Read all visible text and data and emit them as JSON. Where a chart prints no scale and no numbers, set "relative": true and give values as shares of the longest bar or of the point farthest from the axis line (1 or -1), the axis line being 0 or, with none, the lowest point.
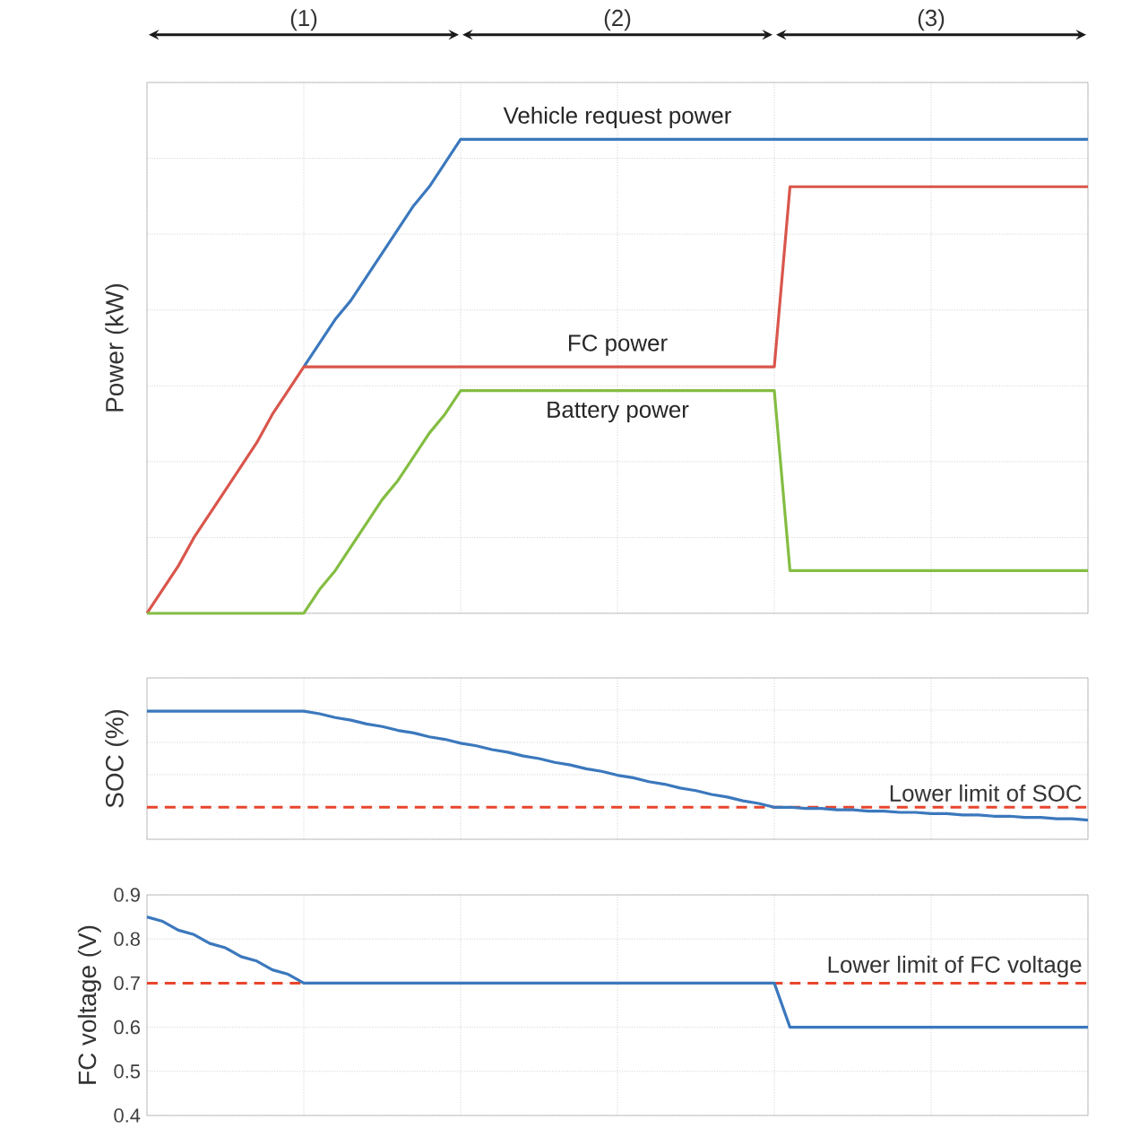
{
  "chart_data": [
    {
      "type": "line",
      "ylabel": "Power (kW)",
      "relative": true,
      "tick_labels": false,
      "grid": true,
      "line_style": "solid",
      "marker": "none",
      "annotations": [
        "(1)",
        "(2)",
        "(3)"
      ],
      "categories": [
        null,
        null,
        null,
        null,
        null,
        null,
        null,
        null,
        null,
        null,
        null,
        null,
        null,
        null,
        null,
        null,
        null,
        null,
        null,
        null,
        null,
        null,
        null,
        null,
        null,
        null,
        null,
        null,
        null,
        null,
        null,
        null,
        null,
        null,
        null,
        null,
        null,
        null,
        null,
        null,
        null,
        null,
        null,
        null,
        null,
        null,
        null,
        null,
        null,
        null,
        null,
        null,
        null,
        null,
        null,
        null,
        null,
        null,
        null,
        null,
        null
      ],
      "series": [
        {
          "name": "Vehicle request power",
          "color": "#3b78bd",
          "values": [
            null,
            null,
            null,
            null,
            null,
            null,
            null,
            null,
            null,
            null,
            0.52,
            0.57,
            0.62,
            0.66,
            0.71,
            0.76,
            0.81,
            0.86,
            0.9,
            0.95,
            1,
            1,
            1,
            1,
            1,
            1,
            1,
            1,
            1,
            1,
            1,
            1,
            1,
            1,
            1,
            1,
            1,
            1,
            1,
            1,
            1,
            1,
            1,
            1,
            1,
            1,
            1,
            1,
            1,
            1,
            1,
            1,
            1,
            1,
            1,
            1,
            1,
            1,
            1,
            1,
            1
          ]
        },
        {
          "name": "FC power",
          "color": "#d9564c",
          "values": [
            0,
            0.05,
            0.1,
            0.16,
            0.21,
            0.26,
            0.31,
            0.36,
            0.42,
            0.47,
            0.52,
            0.52,
            0.52,
            0.52,
            0.52,
            0.52,
            0.52,
            0.52,
            0.52,
            0.52,
            0.52,
            0.52,
            0.52,
            0.52,
            0.52,
            0.52,
            0.52,
            0.52,
            0.52,
            0.52,
            0.52,
            0.52,
            0.52,
            0.52,
            0.52,
            0.52,
            0.52,
            0.52,
            0.52,
            0.52,
            0.52,
            0.9,
            0.9,
            0.9,
            0.9,
            0.9,
            0.9,
            0.9,
            0.9,
            0.9,
            0.9,
            0.9,
            0.9,
            0.9,
            0.9,
            0.9,
            0.9,
            0.9,
            0.9,
            0.9,
            0.9
          ]
        },
        {
          "name": "Battery power",
          "color": "#84bd42",
          "values": [
            0,
            0,
            0,
            0,
            0,
            0,
            0,
            0,
            0,
            0,
            0,
            0.05,
            0.09,
            0.14,
            0.19,
            0.24,
            0.28,
            0.33,
            0.38,
            0.42,
            0.47,
            0.47,
            0.47,
            0.47,
            0.47,
            0.47,
            0.47,
            0.47,
            0.47,
            0.47,
            0.47,
            0.47,
            0.47,
            0.47,
            0.47,
            0.47,
            0.47,
            0.47,
            0.47,
            0.47,
            0.47,
            0.09,
            0.09,
            0.09,
            0.09,
            0.09,
            0.09,
            0.09,
            0.09,
            0.09,
            0.09,
            0.09,
            0.09,
            0.09,
            0.09,
            0.09,
            0.09,
            0.09,
            0.09,
            0.09,
            0.09
          ]
        }
      ]
    },
    {
      "type": "line",
      "ylabel": "SOC (%)",
      "relative": true,
      "tick_labels": false,
      "grid": true,
      "line_style": "solid",
      "marker": "none",
      "categories": [
        null,
        null,
        null,
        null,
        null,
        null,
        null,
        null,
        null,
        null,
        null,
        null,
        null,
        null,
        null,
        null,
        null,
        null,
        null,
        null,
        null,
        null,
        null,
        null,
        null,
        null,
        null,
        null,
        null,
        null,
        null,
        null,
        null,
        null,
        null,
        null,
        null,
        null,
        null,
        null,
        null,
        null,
        null,
        null,
        null,
        null,
        null,
        null,
        null,
        null,
        null,
        null,
        null,
        null,
        null,
        null,
        null,
        null,
        null,
        null,
        null
      ],
      "ref_lines": [
        {
          "axis": "y",
          "value": 0.25,
          "label": "Lower limit of SOC",
          "color": "#e8452c",
          "line_style": "dashed"
        }
      ],
      "series": [
        {
          "color": "#3b78bd",
          "values": [
            1,
            1,
            1,
            1,
            1,
            1,
            1,
            1,
            1,
            1,
            1,
            0.98,
            0.95,
            0.93,
            0.9,
            0.88,
            0.85,
            0.83,
            0.8,
            0.78,
            0.75,
            0.73,
            0.7,
            0.68,
            0.65,
            0.63,
            0.6,
            0.58,
            0.55,
            0.53,
            0.5,
            0.48,
            0.45,
            0.43,
            0.4,
            0.38,
            0.35,
            0.33,
            0.3,
            0.28,
            0.25,
            0.25,
            0.24,
            0.24,
            0.23,
            0.23,
            0.22,
            0.22,
            0.21,
            0.21,
            0.2,
            0.2,
            0.19,
            0.19,
            0.18,
            0.18,
            0.17,
            0.17,
            0.16,
            0.16,
            0.15
          ]
        }
      ]
    },
    {
      "type": "line",
      "ylabel": "FC voltage (V)",
      "ylim": [
        0.4,
        0.9
      ],
      "yticks": [
        0.4,
        0.5,
        0.6,
        0.7,
        0.8,
        0.9
      ],
      "tick_labels": "y",
      "grid": true,
      "line_style": "solid",
      "marker": "none",
      "categories": [
        null,
        null,
        null,
        null,
        null,
        null,
        null,
        null,
        null,
        null,
        null,
        null,
        null,
        null,
        null,
        null,
        null,
        null,
        null,
        null,
        null,
        null,
        null,
        null,
        null,
        null,
        null,
        null,
        null,
        null,
        null,
        null,
        null,
        null,
        null,
        null,
        null,
        null,
        null,
        null,
        null,
        null,
        null,
        null,
        null,
        null,
        null,
        null,
        null,
        null,
        null,
        null,
        null,
        null,
        null,
        null,
        null,
        null,
        null,
        null,
        null
      ],
      "ref_lines": [
        {
          "axis": "y",
          "value": 0.7,
          "label": "Lower limit of FC voltage",
          "color": "#e8452c",
          "line_style": "dashed"
        }
      ],
      "series": [
        {
          "color": "#3b78bd",
          "values": [
            0.85,
            0.84,
            0.82,
            0.81,
            0.79,
            0.78,
            0.76,
            0.75,
            0.73,
            0.72,
            0.7,
            0.7,
            0.7,
            0.7,
            0.7,
            0.7,
            0.7,
            0.7,
            0.7,
            0.7,
            0.7,
            0.7,
            0.7,
            0.7,
            0.7,
            0.7,
            0.7,
            0.7,
            0.7,
            0.7,
            0.7,
            0.7,
            0.7,
            0.7,
            0.7,
            0.7,
            0.7,
            0.7,
            0.7,
            0.7,
            0.7,
            0.6,
            0.6,
            0.6,
            0.6,
            0.6,
            0.6,
            0.6,
            0.6,
            0.6,
            0.6,
            0.6,
            0.6,
            0.6,
            0.6,
            0.6,
            0.6,
            0.6,
            0.6,
            0.6,
            0.6
          ]
        }
      ]
    }
  ]
}
